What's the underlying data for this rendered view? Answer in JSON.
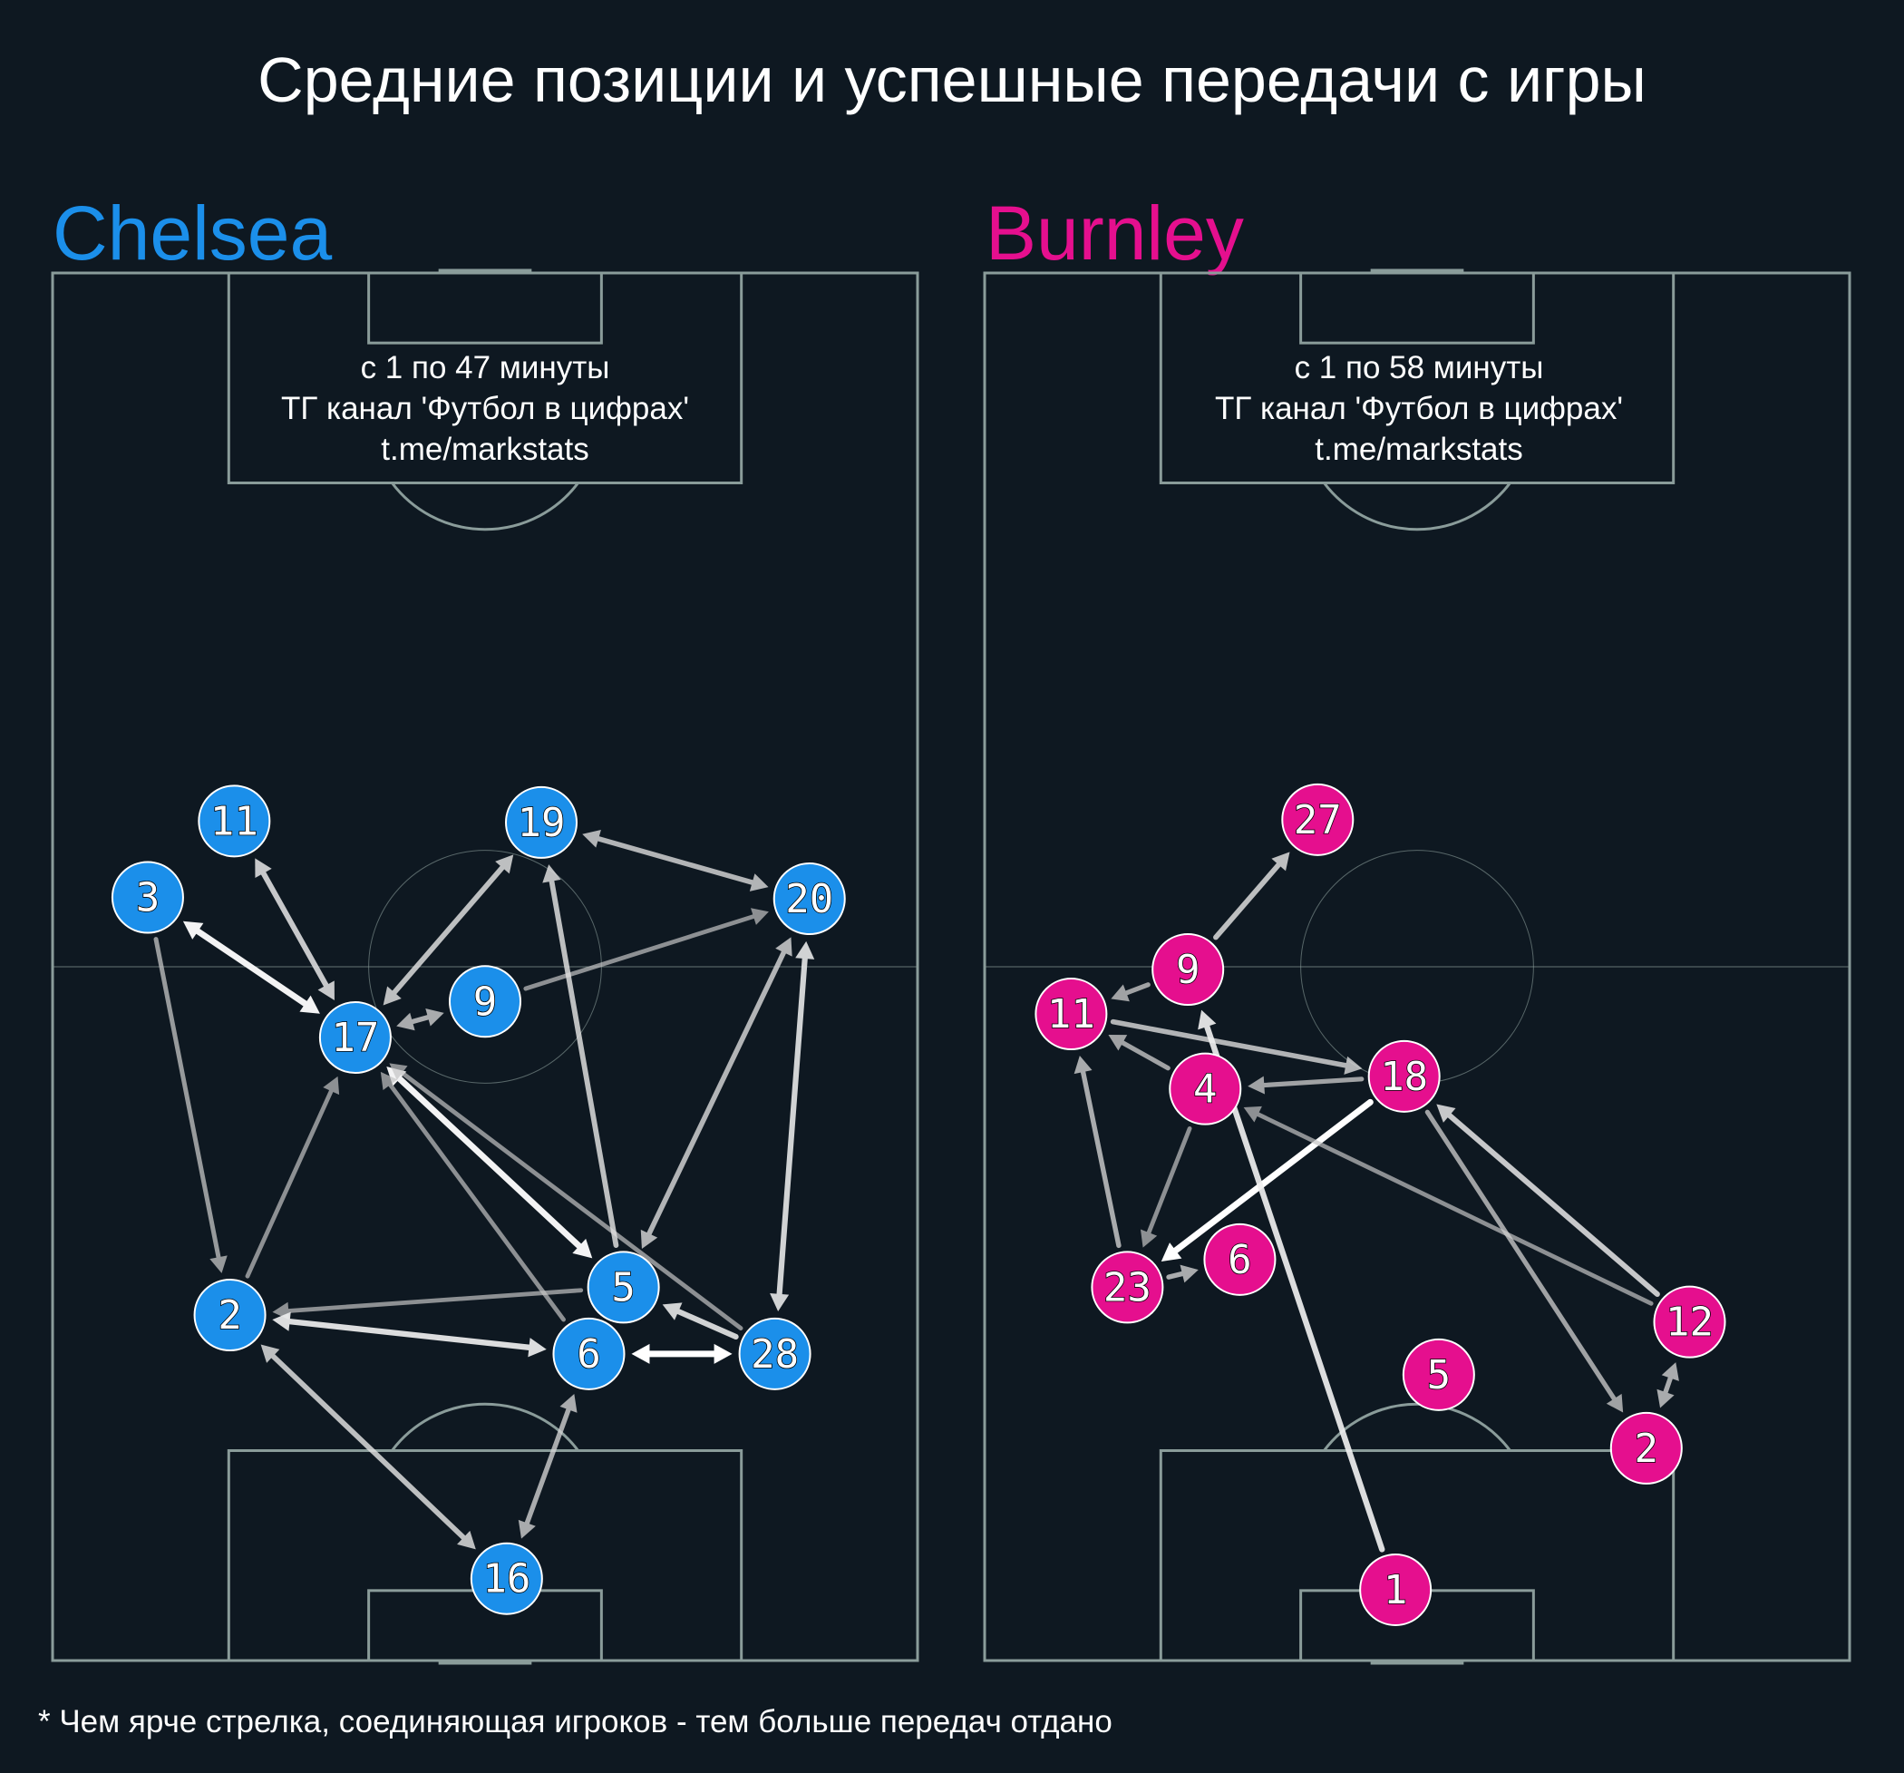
{
  "title": "Средние позиции и успешные передачи с игры",
  "footnote": "* Чем ярче стрелка, соединяющая игроков - тем больше передач отдано",
  "colors": {
    "background": "#0e1821",
    "pitch_line": "#8a9c9a",
    "chelsea": "#1b8fea",
    "burnley": "#e50f8e",
    "text": "#ffffff"
  },
  "teams": [
    {
      "name": "Chelsea",
      "color": "#1b8fea",
      "info": [
        "с 1 по 47 минуты",
        "ТГ канал 'Футбол в цифрах'",
        "t.me/markstats"
      ],
      "players": [
        {
          "id": "11",
          "label": "11",
          "x": 21,
          "y": 60.5
        },
        {
          "id": "19",
          "label": "19",
          "x": 56.5,
          "y": 60.4
        },
        {
          "id": "3",
          "label": "3",
          "x": 11,
          "y": 55
        },
        {
          "id": "20",
          "label": "20",
          "x": 87.5,
          "y": 54.9
        },
        {
          "id": "9",
          "label": "9",
          "x": 50,
          "y": 47.5
        },
        {
          "id": "17",
          "label": "17",
          "x": 35,
          "y": 44.9
        },
        {
          "id": "5",
          "label": "5",
          "x": 66,
          "y": 26.9
        },
        {
          "id": "2",
          "label": "2",
          "x": 20.5,
          "y": 24.9
        },
        {
          "id": "6",
          "label": "6",
          "x": 62,
          "y": 22.1
        },
        {
          "id": "28",
          "label": "28",
          "x": 83.5,
          "y": 22.1
        },
        {
          "id": "16",
          "label": "16",
          "x": 52.5,
          "y": 5.9
        }
      ],
      "passes": [
        {
          "from": "11",
          "to": "17",
          "intensity": 0.75,
          "both": true
        },
        {
          "from": "3",
          "to": "17",
          "intensity": 0.95,
          "both": true
        },
        {
          "from": "17",
          "to": "19",
          "intensity": 0.7,
          "both": true
        },
        {
          "from": "17",
          "to": "9",
          "intensity": 0.6,
          "both": true
        },
        {
          "from": "9",
          "to": "20",
          "intensity": 0.45,
          "both": false
        },
        {
          "from": "19",
          "to": "20",
          "intensity": 0.65,
          "both": true
        },
        {
          "from": "3",
          "to": "2",
          "intensity": 0.5,
          "both": false
        },
        {
          "from": "2",
          "to": "17",
          "intensity": 0.45,
          "both": false
        },
        {
          "from": "17",
          "to": "5",
          "intensity": 0.95,
          "both": true
        },
        {
          "from": "6",
          "to": "17",
          "intensity": 0.45,
          "both": false
        },
        {
          "from": "28",
          "to": "17",
          "intensity": 0.45,
          "both": false
        },
        {
          "from": "5",
          "to": "19",
          "intensity": 0.7,
          "both": false
        },
        {
          "from": "5",
          "to": "20",
          "intensity": 0.65,
          "both": true
        },
        {
          "from": "20",
          "to": "28",
          "intensity": 0.8,
          "both": true
        },
        {
          "from": "5",
          "to": "2",
          "intensity": 0.45,
          "both": false
        },
        {
          "from": "2",
          "to": "6",
          "intensity": 0.85,
          "both": true
        },
        {
          "from": "28",
          "to": "5",
          "intensity": 0.8,
          "both": false
        },
        {
          "from": "6",
          "to": "28",
          "intensity": 1.0,
          "both": true
        },
        {
          "from": "2",
          "to": "16",
          "intensity": 0.7,
          "both": true
        },
        {
          "from": "6",
          "to": "16",
          "intensity": 0.6,
          "both": true
        }
      ]
    },
    {
      "name": "Burnley",
      "color": "#e50f8e",
      "info": [
        "с 1 по 58 минуты",
        "ТГ канал 'Футбол в цифрах'",
        "t.me/markstats"
      ],
      "players": [
        {
          "id": "27",
          "label": "27",
          "x": 38.5,
          "y": 60.6
        },
        {
          "id": "9",
          "label": "9",
          "x": 23.5,
          "y": 49.8
        },
        {
          "id": "11",
          "label": "11",
          "x": 10,
          "y": 46.6
        },
        {
          "id": "18",
          "label": "18",
          "x": 48.5,
          "y": 42.1
        },
        {
          "id": "4",
          "label": "4",
          "x": 25.5,
          "y": 41.2
        },
        {
          "id": "6",
          "label": "6",
          "x": 29.5,
          "y": 28.9
        },
        {
          "id": "23",
          "label": "23",
          "x": 16.5,
          "y": 26.9
        },
        {
          "id": "12",
          "label": "12",
          "x": 81.5,
          "y": 24.4
        },
        {
          "id": "5",
          "label": "5",
          "x": 52.5,
          "y": 20.6
        },
        {
          "id": "2",
          "label": "2",
          "x": 76.5,
          "y": 15.3
        },
        {
          "id": "1",
          "label": "1",
          "x": 47.5,
          "y": 5.1
        }
      ],
      "passes": [
        {
          "from": "9",
          "to": "27",
          "intensity": 0.7,
          "both": false
        },
        {
          "from": "9",
          "to": "11",
          "intensity": 0.55,
          "both": false
        },
        {
          "from": "11",
          "to": "18",
          "intensity": 0.65,
          "both": false
        },
        {
          "from": "18",
          "to": "4",
          "intensity": 0.55,
          "both": false
        },
        {
          "from": "4",
          "to": "11",
          "intensity": 0.55,
          "both": false
        },
        {
          "from": "23",
          "to": "11",
          "intensity": 0.6,
          "both": false
        },
        {
          "from": "4",
          "to": "23",
          "intensity": 0.45,
          "both": false
        },
        {
          "from": "18",
          "to": "23",
          "intensity": 1.0,
          "both": false
        },
        {
          "from": "23",
          "to": "6",
          "intensity": 0.6,
          "both": false
        },
        {
          "from": "1",
          "to": "9",
          "intensity": 0.85,
          "both": false
        },
        {
          "from": "12",
          "to": "18",
          "intensity": 0.75,
          "both": false
        },
        {
          "from": "12",
          "to": "4",
          "intensity": 0.45,
          "both": false
        },
        {
          "from": "18",
          "to": "2",
          "intensity": 0.55,
          "both": false
        },
        {
          "from": "2",
          "to": "12",
          "intensity": 0.6,
          "both": true
        }
      ]
    }
  ]
}
